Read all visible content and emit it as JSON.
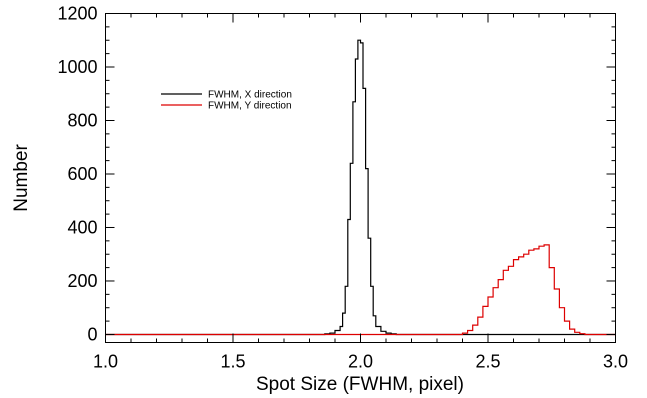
{
  "chart_data": {
    "type": "line",
    "xlabel": "Spot Size (FWHM, pixel)",
    "ylabel": "Number",
    "xlim": [
      1.0,
      3.0
    ],
    "ylim": [
      -30,
      1200
    ],
    "xticks": [
      "1.0",
      "1.5",
      "2.0",
      "2.5",
      "3.0"
    ],
    "xtick_values": [
      1.0,
      1.5,
      2.0,
      2.5,
      3.0
    ],
    "yticks": [
      "0",
      "200",
      "400",
      "600",
      "800",
      "1000",
      "1200"
    ],
    "ytick_values": [
      0,
      200,
      400,
      600,
      800,
      1000,
      1200
    ],
    "grid": false,
    "legend_position": "upper-left",
    "series": [
      {
        "name": "FWHM, X direction",
        "color": "#000000",
        "x": [
          1.0,
          1.84,
          1.86,
          1.88,
          1.9,
          1.92,
          1.93,
          1.94,
          1.95,
          1.96,
          1.97,
          1.98,
          1.99,
          2.0,
          2.01,
          2.02,
          2.03,
          2.04,
          2.05,
          2.06,
          2.08,
          2.1,
          2.12,
          2.14,
          3.0
        ],
        "y": [
          0,
          0,
          2,
          5,
          15,
          30,
          80,
          180,
          430,
          640,
          870,
          1030,
          1100,
          1090,
          920,
          620,
          360,
          180,
          70,
          30,
          12,
          5,
          2,
          0,
          0
        ]
      },
      {
        "name": "FWHM, Y direction",
        "color": "#dd0000",
        "x": [
          1.0,
          2.38,
          2.4,
          2.42,
          2.44,
          2.46,
          2.48,
          2.5,
          2.52,
          2.54,
          2.56,
          2.58,
          2.6,
          2.62,
          2.64,
          2.66,
          2.68,
          2.7,
          2.72,
          2.74,
          2.76,
          2.78,
          2.8,
          2.82,
          2.84,
          2.86,
          2.88,
          3.0
        ],
        "y": [
          0,
          0,
          5,
          15,
          35,
          65,
          105,
          140,
          175,
          205,
          240,
          255,
          280,
          290,
          300,
          315,
          320,
          330,
          335,
          250,
          170,
          100,
          50,
          20,
          8,
          3,
          0,
          0
        ]
      }
    ]
  }
}
